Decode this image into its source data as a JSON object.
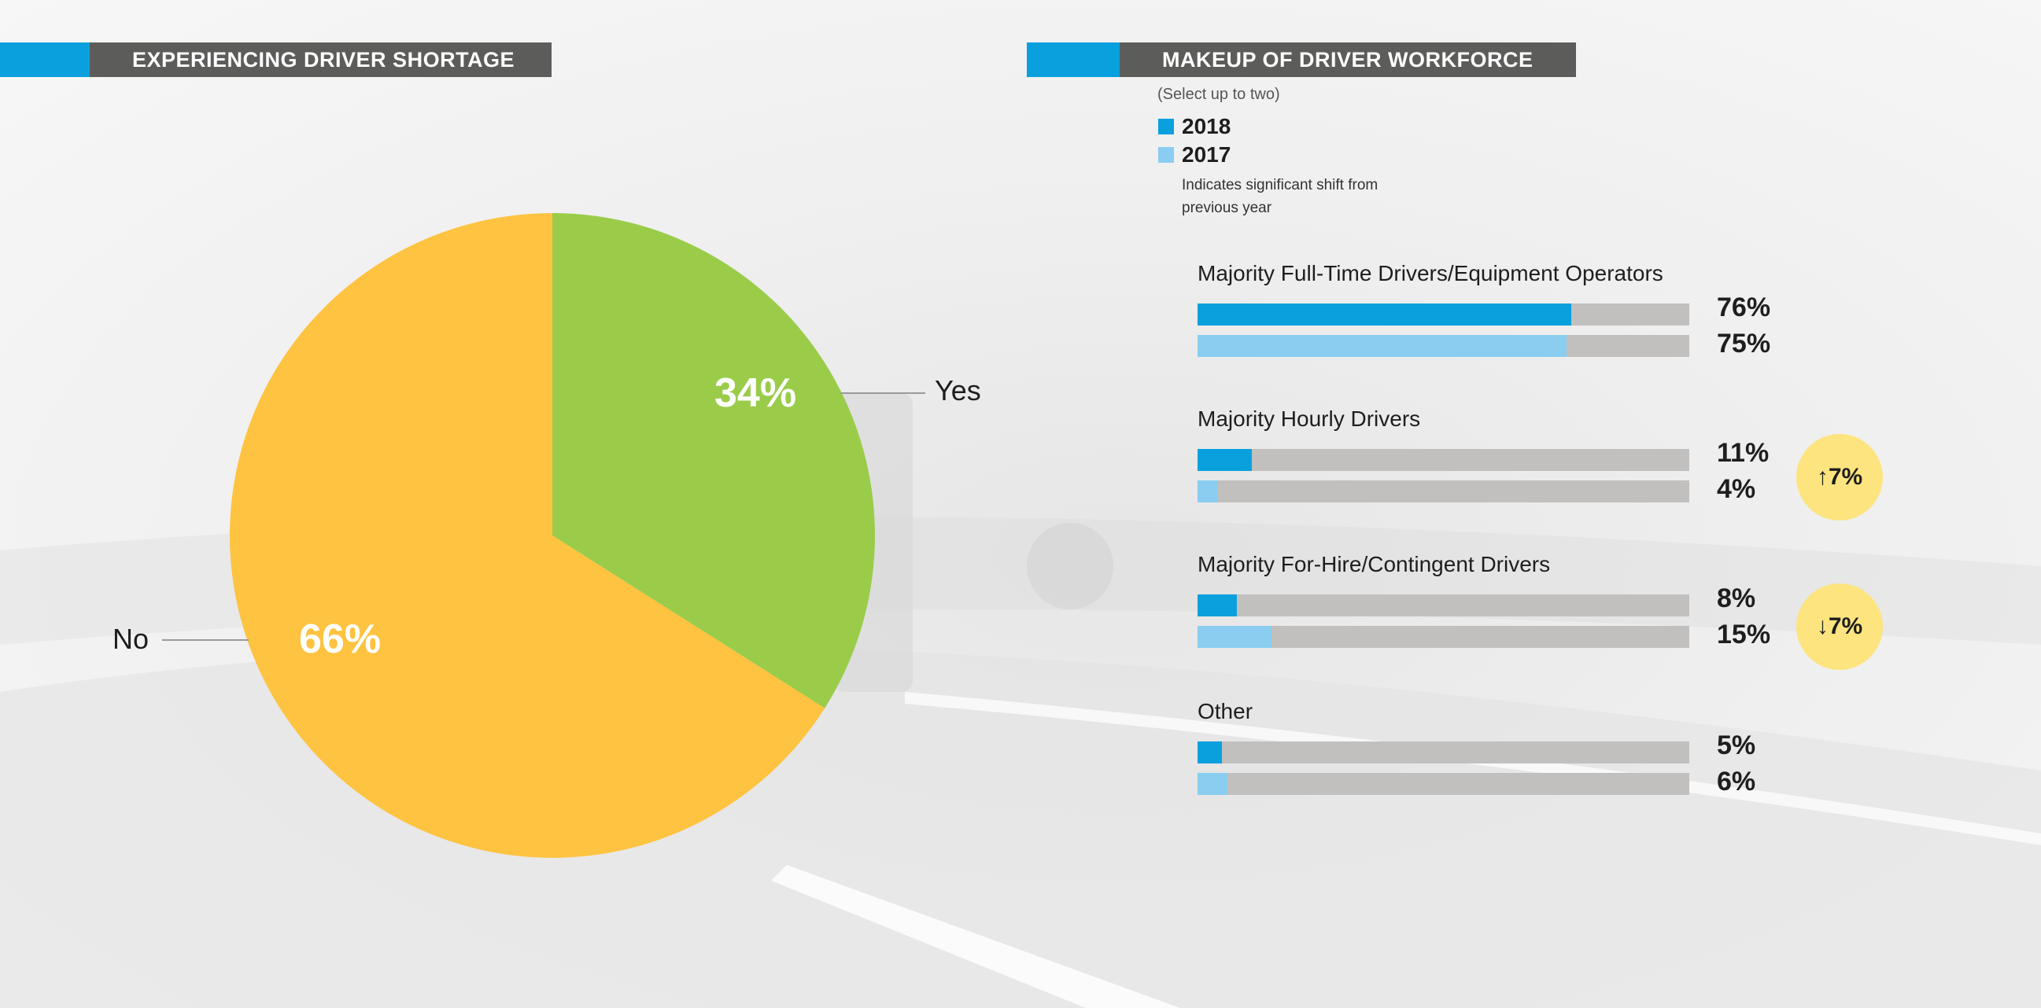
{
  "colors": {
    "accent": "#0aa0de",
    "header_bg": "#5c5d5a",
    "pie_yes": "#9acc4a",
    "pie_no": "#fec340",
    "bar_2018": "#0aa0de",
    "bar_2017": "#8acdf0",
    "bar_track": "#c1c0be",
    "badge": "#fde47e"
  },
  "left_panel": {
    "title": "EXPERIENCING DRIVER SHORTAGE"
  },
  "right_panel": {
    "title": "MAKEUP OF DRIVER WORKFORCE",
    "note": "(Select up to two)",
    "significance_note": "Indicates significant shift from previous year"
  },
  "chart_data": [
    {
      "type": "pie",
      "title": "EXPERIENCING DRIVER SHORTAGE",
      "slices": [
        {
          "label": "Yes",
          "value": 34,
          "value_label": "34%",
          "color": "#9acc4a"
        },
        {
          "label": "No",
          "value": 66,
          "value_label": "66%",
          "color": "#fec340"
        }
      ]
    },
    {
      "type": "bar",
      "orientation": "horizontal",
      "title": "MAKEUP OF DRIVER WORKFORCE",
      "xlim": [
        0,
        100
      ],
      "legend": [
        {
          "name": "2018",
          "color": "#0aa0de"
        },
        {
          "name": "2017",
          "color": "#8acdf0"
        }
      ],
      "categories": [
        "Majority Full-Time Drivers/Equipment Operators",
        "Majority Hourly Drivers",
        "Majority For-Hire/Contingent Drivers",
        "Other"
      ],
      "series": [
        {
          "name": "2018",
          "values": [
            76,
            11,
            8,
            5
          ],
          "labels": [
            "76%",
            "11%",
            "8%",
            "5%"
          ]
        },
        {
          "name": "2017",
          "values": [
            75,
            4,
            15,
            6
          ],
          "labels": [
            "75%",
            "4%",
            "15%",
            "6%"
          ]
        }
      ],
      "shifts": [
        {
          "category_index": 1,
          "label": "↑7%"
        },
        {
          "category_index": 2,
          "label": "↓7%"
        }
      ]
    }
  ]
}
